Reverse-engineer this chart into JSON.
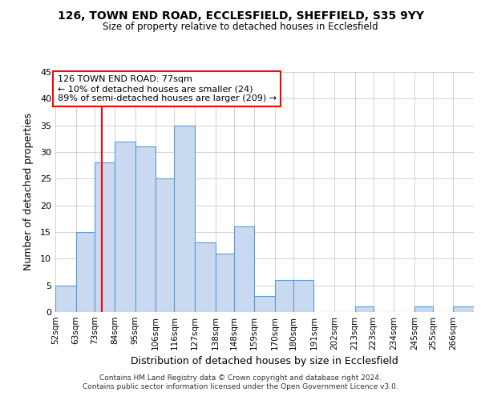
{
  "title": "126, TOWN END ROAD, ECCLESFIELD, SHEFFIELD, S35 9YY",
  "subtitle": "Size of property relative to detached houses in Ecclesfield",
  "xlabel": "Distribution of detached houses by size in Ecclesfield",
  "ylabel": "Number of detached properties",
  "bin_labels": [
    "52sqm",
    "63sqm",
    "73sqm",
    "84sqm",
    "95sqm",
    "106sqm",
    "116sqm",
    "127sqm",
    "138sqm",
    "148sqm",
    "159sqm",
    "170sqm",
    "180sqm",
    "191sqm",
    "202sqm",
    "213sqm",
    "223sqm",
    "234sqm",
    "245sqm",
    "255sqm",
    "266sqm"
  ],
  "bin_edges": [
    52,
    63,
    73,
    84,
    95,
    106,
    116,
    127,
    138,
    148,
    159,
    170,
    180,
    191,
    202,
    213,
    223,
    234,
    245,
    255,
    266
  ],
  "counts": [
    5,
    15,
    28,
    32,
    31,
    25,
    35,
    13,
    11,
    16,
    3,
    6,
    6,
    0,
    0,
    1,
    0,
    0,
    1,
    0,
    1
  ],
  "bar_color": "#c9d9f0",
  "bar_edge_color": "#5b9bd5",
  "grid_color": "#c0c0c0",
  "vline_x": 77,
  "vline_color": "red",
  "annotation_title": "126 TOWN END ROAD: 77sqm",
  "annotation_line1": "← 10% of detached houses are smaller (24)",
  "annotation_line2": "89% of semi-detached houses are larger (209) →",
  "annotation_box_color": "white",
  "annotation_box_edge": "red",
  "ylim": [
    0,
    45
  ],
  "yticks": [
    0,
    5,
    10,
    15,
    20,
    25,
    30,
    35,
    40,
    45
  ],
  "footnote1": "Contains HM Land Registry data © Crown copyright and database right 2024.",
  "footnote2": "Contains public sector information licensed under the Open Government Licence v3.0."
}
